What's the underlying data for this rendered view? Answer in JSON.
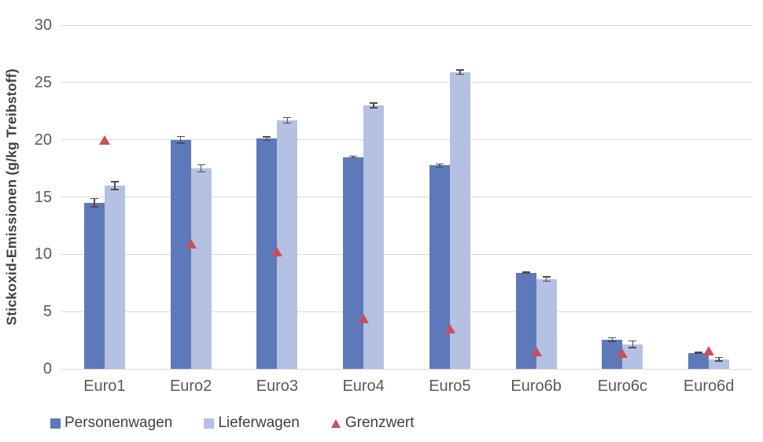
{
  "chart_data": {
    "type": "bar",
    "title": "",
    "xlabel": "",
    "ylabel": "Stickoxid-Emissionen (g/kg Treibstoff)",
    "ylim": [
      0,
      30
    ],
    "yticks": [
      0,
      5,
      10,
      15,
      20,
      25,
      30
    ],
    "grid": "horizontal-only",
    "legend_position": "bottom-left",
    "error_bars": true,
    "categories": [
      "Euro1",
      "Euro2",
      "Euro3",
      "Euro4",
      "Euro5",
      "Euro6b",
      "Euro6c",
      "Euro6d"
    ],
    "series": [
      {
        "name": "Personenwagen",
        "color": "#5e79ba",
        "values": [
          14.5,
          20.0,
          20.1,
          18.5,
          17.75,
          8.4,
          2.55,
          1.4
        ],
        "errors": [
          0.4,
          0.35,
          0.2,
          0.12,
          0.2,
          0.1,
          0.2,
          0.1
        ]
      },
      {
        "name": "Lieferwagen",
        "color": "#b4c1e2",
        "values": [
          16.0,
          17.5,
          21.7,
          23.0,
          25.9,
          7.85,
          2.15,
          0.85
        ],
        "errors": [
          0.4,
          0.35,
          0.3,
          0.25,
          0.25,
          0.25,
          0.35,
          0.2
        ]
      }
    ],
    "limit_series": {
      "name": "Grenzwert",
      "marker": "triangle-up",
      "color": "#c9505a",
      "values": [
        20.0,
        10.9,
        10.2,
        4.4,
        3.5,
        1.5,
        1.4,
        1.55
      ]
    }
  },
  "colors": {
    "gridline": "#d9d9d9",
    "tick_text": "#595959",
    "axis_title_text": "#404040",
    "legend_text": "#3f3f3f",
    "error_bar": "#4d4d4d",
    "background": "#ffffff"
  }
}
